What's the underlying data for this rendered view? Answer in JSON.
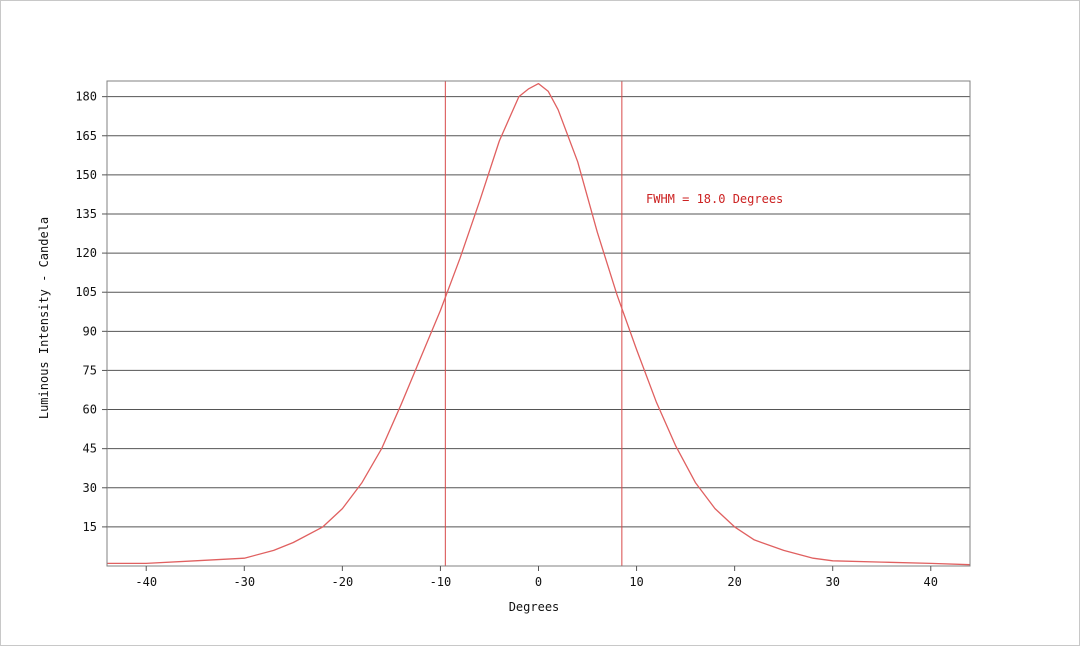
{
  "chart_data": {
    "type": "line",
    "title": "",
    "xlabel": "Degrees",
    "ylabel": "Luminous Intensity - Candela",
    "xlim": [
      -44,
      44
    ],
    "ylim": [
      0,
      186
    ],
    "xticks": [
      -40,
      -30,
      -20,
      -10,
      0,
      10,
      20,
      30,
      40
    ],
    "yticks": [
      15,
      30,
      45,
      60,
      75,
      90,
      105,
      120,
      135,
      150,
      165,
      180
    ],
    "grid": "horizontal",
    "annotation": "FWHM = 18.0 Degrees",
    "fwhm_markers": [
      -9.5,
      8.5
    ],
    "series": [
      {
        "color": "#e06060",
        "x": [
          -44,
          -40,
          -35,
          -30,
          -27,
          -25,
          -22,
          -20,
          -18,
          -16,
          -14,
          -12,
          -10,
          -8,
          -6,
          -4,
          -2,
          -1,
          0,
          1,
          2,
          4,
          6,
          8,
          10,
          12,
          14,
          16,
          18,
          20,
          22,
          25,
          28,
          30,
          35,
          40,
          44
        ],
        "y": [
          1,
          1,
          2,
          3,
          6,
          9,
          15,
          22,
          32,
          45,
          62,
          80,
          98,
          118,
          140,
          163,
          180,
          183,
          185,
          182,
          175,
          155,
          128,
          104,
          83,
          63,
          46,
          32,
          22,
          15,
          10,
          6,
          3,
          2,
          1.5,
          1,
          0.5
        ]
      }
    ]
  },
  "colors": {
    "grid": "#555555",
    "curve": "#e06060",
    "markers": "#d84a4a",
    "annotation": "#cc2222"
  }
}
